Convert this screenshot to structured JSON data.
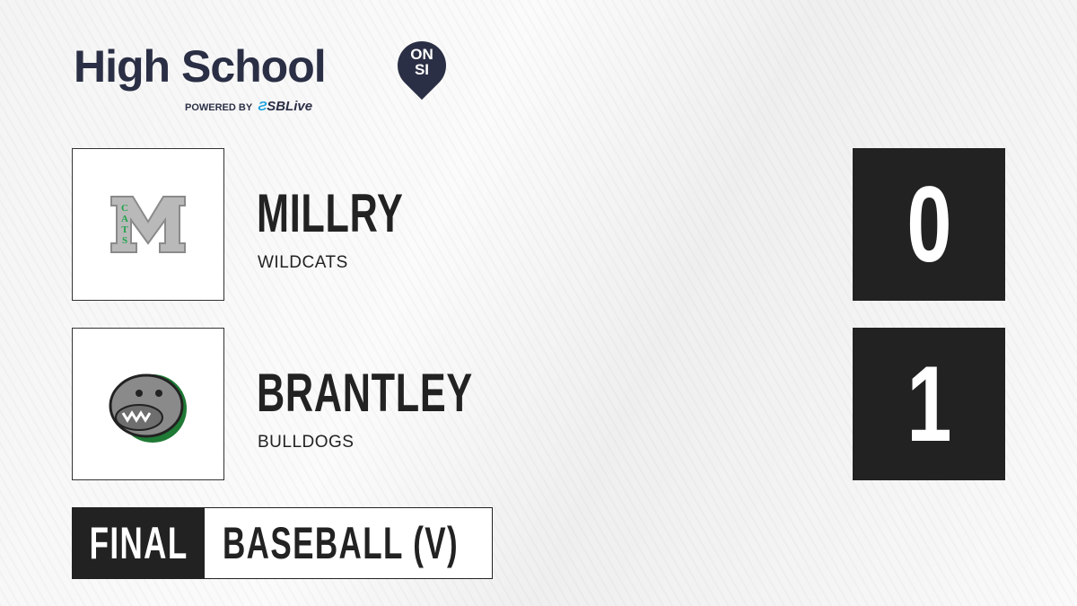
{
  "brand": {
    "title": "High School",
    "badge_line1": "ON",
    "badge_line2": "SI",
    "powered_by": "POWERED BY",
    "partner": "SBLive"
  },
  "teams": [
    {
      "name": "MILLRY",
      "mascot": "WILDCATS",
      "score": "0",
      "logo_letter": "M",
      "logo_text": "CATS",
      "logo_color": "#1fa34a"
    },
    {
      "name": "BRANTLEY",
      "mascot": "BULLDOGS",
      "score": "1",
      "logo_color": "#1f7a35"
    }
  ],
  "game": {
    "status": "FINAL",
    "sport": "BASEBALL (V)"
  }
}
